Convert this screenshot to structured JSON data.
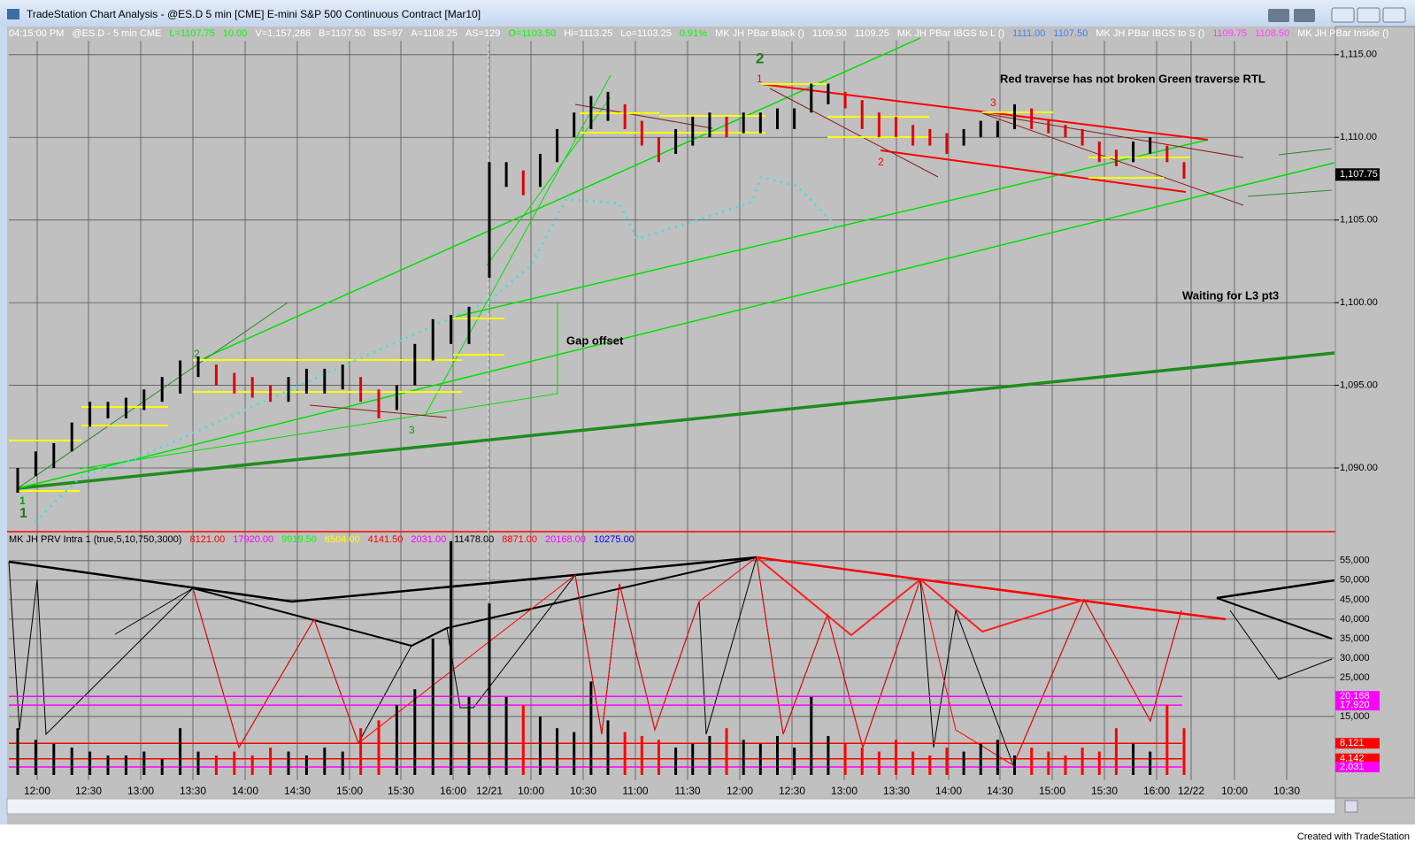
{
  "window": {
    "title": "TradeStation Chart Analysis - @ES.D 5 min [CME] E-mini S&P 500 Continuous Contract [Mar10]",
    "footer": "Created with TradeStation"
  },
  "info_items": [
    {
      "text": "04:15:00 PM",
      "color": "#ffffff"
    },
    {
      "text": "@ES.D - 5 min  CME",
      "color": "#ffffff"
    },
    {
      "text": "L=1107.75",
      "color": "#00ff00"
    },
    {
      "text": "10.00",
      "color": "#00ff00"
    },
    {
      "text": "V=1,157,286",
      "color": "#ffffff"
    },
    {
      "text": "B=1107.50",
      "color": "#ffffff"
    },
    {
      "text": "BS=97",
      "color": "#ffffff"
    },
    {
      "text": "A=1108.25",
      "color": "#ffffff"
    },
    {
      "text": "AS=129",
      "color": "#ffffff"
    },
    {
      "text": "O=1103.50",
      "color": "#00ff00"
    },
    {
      "text": "Hi=1113.25",
      "color": "#ffffff"
    },
    {
      "text": "Lo=1103.25",
      "color": "#ffffff"
    },
    {
      "text": "0.91%",
      "color": "#00ff00"
    },
    {
      "text": "MK JH PBar Black ()",
      "color": "#ffffff"
    },
    {
      "text": "1109.50",
      "color": "#ffffff"
    },
    {
      "text": "1109.25",
      "color": "#ffffff"
    },
    {
      "text": "MK JH PBar IBGS to L ()",
      "color": "#ffffff"
    },
    {
      "text": "1111.00",
      "color": "#4080ff"
    },
    {
      "text": "1107.50",
      "color": "#4080ff"
    },
    {
      "text": "MK JH PBar IBGS to S ()",
      "color": "#ffffff"
    },
    {
      "text": "1109.75",
      "color": "#ff40ff"
    },
    {
      "text": "1108.50",
      "color": "#ff40ff"
    },
    {
      "text": "MK JH PBar Inside ()",
      "color": "#ffffff"
    }
  ],
  "indicator_items": [
    {
      "text": "MK JH PRV Intra 1 (true,5,10,750,3000)",
      "color": "#000000"
    },
    {
      "text": "8121.00",
      "color": "#ff0000"
    },
    {
      "text": "17920.00",
      "color": "#ff00ff"
    },
    {
      "text": "9919.50",
      "color": "#00ff00"
    },
    {
      "text": "6504.00",
      "color": "#ffff00"
    },
    {
      "text": "4141.50",
      "color": "#ff0000"
    },
    {
      "text": "2031.00",
      "color": "#ff00ff"
    },
    {
      "text": "11478.00",
      "color": "#000000"
    },
    {
      "text": "8871.00",
      "color": "#ff0000"
    },
    {
      "text": "20168.00",
      "color": "#ff00ff"
    },
    {
      "text": "10275.00",
      "color": "#0000ff"
    }
  ],
  "chart_data": [
    {
      "type": "ohlc",
      "ylim": [
        1086.2,
        1115.9
      ],
      "yticks": [
        {
          "value": 1115,
          "label": "1,115.00"
        },
        {
          "value": 1110,
          "label": "1,110.00"
        },
        {
          "value": 1105,
          "label": "1,105.00"
        },
        {
          "value": 1100,
          "label": "1,100.00"
        },
        {
          "value": 1095,
          "label": "1,095.00"
        },
        {
          "value": 1090,
          "label": "1,090.00"
        }
      ],
      "last_price": 1107.75,
      "last_price_label": "1,107.75",
      "day1_bars": [
        [
          1088.5,
          1090
        ],
        [
          1089.5,
          1091
        ],
        [
          1090,
          1091.5
        ],
        [
          1091,
          1092.75
        ],
        [
          1092.5,
          1094
        ],
        [
          1093,
          1094
        ],
        [
          1093,
          1094.25
        ],
        [
          1093.5,
          1094.75
        ],
        [
          1094,
          1095.5
        ],
        [
          1094.5,
          1096.5
        ],
        [
          1095.5,
          1096.75
        ],
        [
          1095,
          1096.25
        ],
        [
          1094.5,
          1095.75
        ],
        [
          1094.25,
          1095.5
        ],
        [
          1094,
          1095
        ],
        [
          1094,
          1095.5
        ],
        [
          1094.5,
          1096
        ],
        [
          1094.5,
          1096
        ],
        [
          1094.75,
          1096.25
        ],
        [
          1094,
          1095.5
        ],
        [
          1093,
          1094.75
        ],
        [
          1093.5,
          1095
        ],
        [
          1095,
          1097.5
        ],
        [
          1096.5,
          1099
        ],
        [
          1097.5,
          1099.25
        ],
        [
          1097.5,
          1099.75
        ]
      ],
      "day2_bars": [
        [
          1101.5,
          1108.5
        ],
        [
          1107,
          1108.5
        ],
        [
          1106.5,
          1108
        ],
        [
          1107,
          1109
        ],
        [
          1108.5,
          1110.5
        ],
        [
          1110,
          1111.5
        ],
        [
          1110.5,
          1112.5
        ],
        [
          1111,
          1112.75
        ],
        [
          1110.5,
          1112
        ],
        [
          1109.5,
          1111
        ],
        [
          1108.5,
          1110
        ],
        [
          1109,
          1110.5
        ],
        [
          1109.5,
          1111.25
        ],
        [
          1110,
          1111.5
        ],
        [
          1110,
          1111.25
        ],
        [
          1110.25,
          1111.5
        ],
        [
          1110.25,
          1111.5
        ],
        [
          1110.5,
          1111.75
        ],
        [
          1110.5,
          1111.75
        ],
        [
          1111.5,
          1113.25
        ],
        [
          1112,
          1113.25
        ],
        [
          1111.75,
          1112.75
        ],
        [
          1110.5,
          1112.25
        ],
        [
          1110,
          1111.5
        ],
        [
          1110,
          1111.25
        ],
        [
          1109.5,
          1110.75
        ],
        [
          1109.5,
          1110.5
        ],
        [
          1109,
          1110.25
        ],
        [
          1109.5,
          1110.5
        ],
        [
          1110,
          1111
        ],
        [
          1110,
          1111
        ],
        [
          1110.5,
          1112
        ],
        [
          1110.5,
          1111.75
        ],
        [
          1110.25,
          1111
        ],
        [
          1110,
          1110.75
        ],
        [
          1109.5,
          1110.5
        ],
        [
          1108.5,
          1109.75
        ],
        [
          1108.25,
          1109.25
        ],
        [
          1108.5,
          1109.75
        ],
        [
          1109,
          1110
        ],
        [
          1108.5,
          1109.5
        ],
        [
          1107.5,
          1108.5
        ]
      ],
      "annotations": [
        "Red traverse has not broken Green traverse RTL",
        "Waiting for L3 pt3",
        "Gap offset"
      ],
      "pivot_labels": [
        "1",
        "1",
        "2",
        "3",
        "2",
        "1",
        "2",
        "3"
      ]
    },
    {
      "type": "volume",
      "ylim": [
        0,
        62000
      ],
      "yticks": [
        {
          "value": 55000,
          "label": "55,000"
        },
        {
          "value": 50000,
          "label": "50,000"
        },
        {
          "value": 45000,
          "label": "45,000"
        },
        {
          "value": 40000,
          "label": "40,000"
        },
        {
          "value": 35000,
          "label": "35,000"
        },
        {
          "value": 30000,
          "label": "30,000"
        },
        {
          "value": 25000,
          "label": "25,000"
        },
        {
          "value": 15000,
          "label": "15,000"
        }
      ],
      "day1_volume": [
        12000,
        9000,
        8000,
        7000,
        6000,
        5000,
        5000,
        6000,
        4000,
        12000,
        6000,
        5000,
        6000,
        5000,
        7000,
        6000,
        5000,
        7000,
        6000,
        12000,
        14000,
        18000,
        22000,
        35000,
        60000,
        20000
      ],
      "day2_volume": [
        44000,
        20000,
        18000,
        15000,
        12000,
        11000,
        24000,
        14000,
        11000,
        10000,
        9000,
        7000,
        8000,
        10000,
        12000,
        9000,
        8000,
        10000,
        7000,
        20000,
        10000,
        8000,
        7000,
        6000,
        9000,
        6000,
        5000,
        7000,
        6000,
        8000,
        9000,
        5000,
        7000,
        6000,
        5000,
        7000,
        6000,
        12000,
        8000,
        6000,
        18000,
        12000
      ],
      "levels": [
        {
          "value": 20168,
          "label": "20,168",
          "color": "#ff00ff"
        },
        {
          "value": 17920,
          "label": "17,920",
          "color": "#ff00ff"
        },
        {
          "value": 8121,
          "label": "8,121",
          "color": "#ff0000"
        },
        {
          "value": 4142,
          "label": "4,142",
          "color": "#ff0000"
        },
        {
          "value": 2031,
          "label": "2,031",
          "color": "#ff00ff"
        }
      ]
    }
  ],
  "time_labels": [
    "12:00",
    "12:30",
    "13:00",
    "13:30",
    "14:00",
    "14:30",
    "15:00",
    "15:30",
    "16:00",
    "12/21",
    "10:00",
    "10:30",
    "11:00",
    "11:30",
    "12:00",
    "12:30",
    "13:00",
    "13:30",
    "14:00",
    "14:30",
    "15:00",
    "15:30",
    "16:00",
    "12/22",
    "10:00",
    "10:30"
  ]
}
